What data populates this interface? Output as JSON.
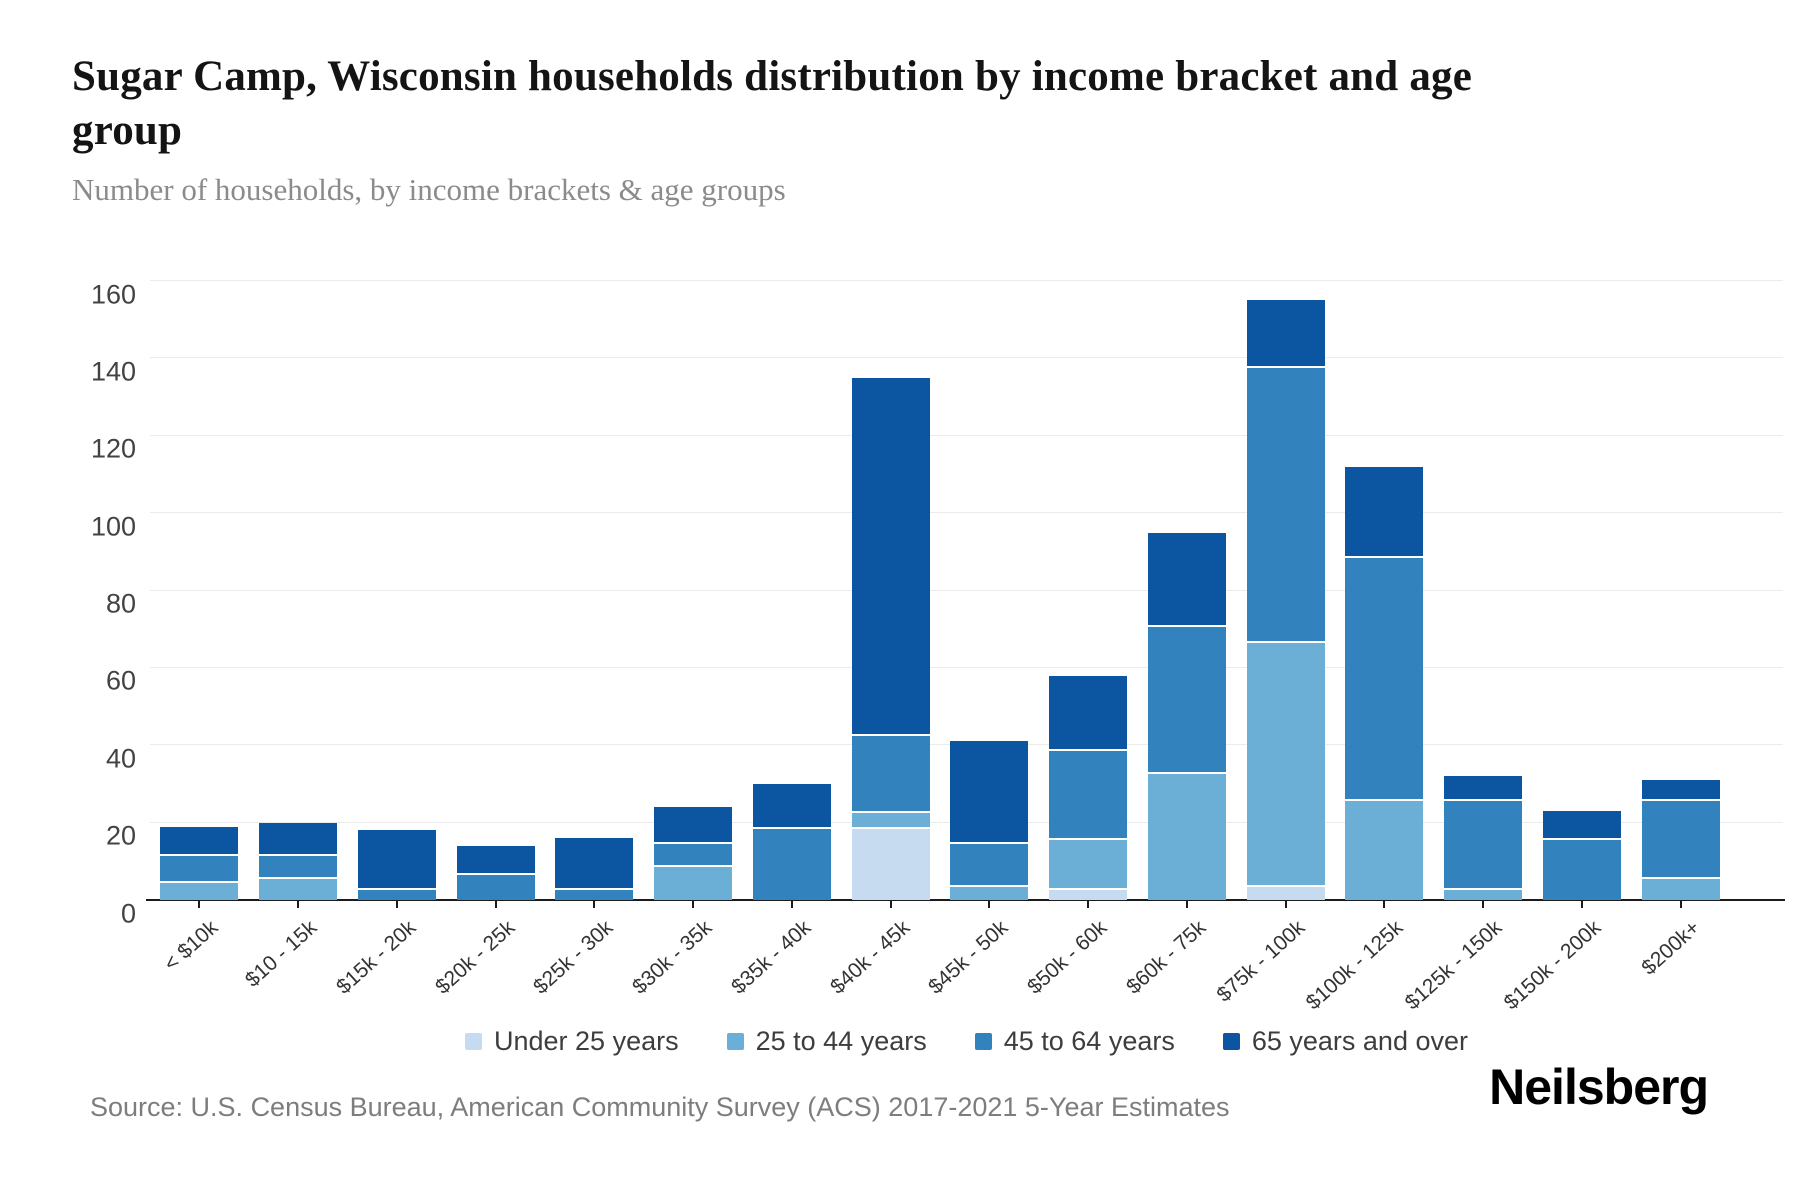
{
  "header": {
    "title": "Sugar Camp, Wisconsin households distribution by income bracket and age group",
    "subtitle": "Number of households, by income brackets & age groups"
  },
  "chart_data": {
    "type": "bar",
    "stacked": true,
    "title": "Sugar Camp, Wisconsin households distribution by income bracket and age group",
    "subtitle": "Number of households, by income brackets & age groups",
    "categories": [
      "< $10k",
      "$10 - 15k",
      "$15k - 20k",
      "$20k - 25k",
      "$25k - 30k",
      "$30k - 35k",
      "$35k - 40k",
      "$40k - 45k",
      "$45k - 50k",
      "$50k - 60k",
      "$60k - 75k",
      "$75k - 100k",
      "$100k - 125k",
      "$125k - 150k",
      "$150k - 200k",
      "$200k+"
    ],
    "series": [
      {
        "name": "Under 25 years",
        "color": "#c6dbef",
        "values": [
          0,
          0,
          0,
          0,
          0,
          0,
          0,
          19,
          0,
          3,
          0,
          4,
          0,
          0,
          0,
          0
        ]
      },
      {
        "name": "25 to 44 years",
        "color": "#6baed6",
        "values": [
          5,
          6,
          0,
          0,
          0,
          9,
          0,
          4,
          4,
          13,
          33,
          63,
          26,
          3,
          0,
          6
        ]
      },
      {
        "name": "45 to 64 years",
        "color": "#3182bd",
        "values": [
          7,
          6,
          3,
          7,
          3,
          6,
          19,
          20,
          11,
          23,
          38,
          71,
          63,
          23,
          16,
          20
        ]
      },
      {
        "name": "65 years and over",
        "color": "#0b55a1",
        "values": [
          7,
          8,
          15,
          7,
          13,
          9,
          11,
          92,
          26,
          19,
          24,
          17,
          23,
          6,
          7,
          5
        ]
      }
    ],
    "totals": [
      19,
      20,
      18,
      14,
      16,
      24,
      30,
      135,
      41,
      58,
      95,
      155,
      112,
      32,
      23,
      31
    ],
    "ylim": [
      0,
      160
    ],
    "ytick_step": 20,
    "grid": true,
    "legend_position": "bottom",
    "xlabel": "",
    "ylabel": ""
  },
  "footer": {
    "source": "Source: U.S. Census Bureau, American Community Survey (ACS) 2017-2021 5-Year Estimates",
    "logo": "Neilsberg"
  }
}
